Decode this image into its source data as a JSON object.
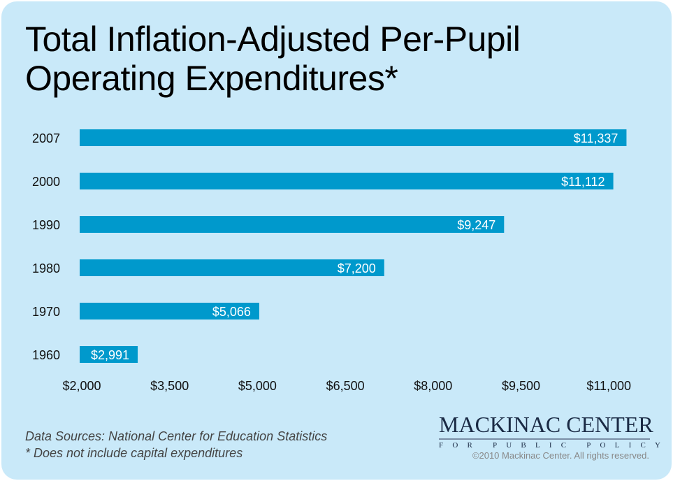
{
  "title_lines": [
    "Total Inflation-Adjusted Per-Pupil",
    "Operating Expenditures*"
  ],
  "chart_data": {
    "type": "bar",
    "orientation": "horizontal",
    "title": "Total Inflation-Adjusted Per-Pupil Operating Expenditures*",
    "categories": [
      "2007",
      "2000",
      "1990",
      "1980",
      "1970",
      "1960"
    ],
    "values": [
      11337,
      11112,
      9247,
      7200,
      5066,
      2991
    ],
    "data_labels": [
      "$11,337",
      "$11,112",
      "$9,247",
      "$7,200",
      "$5,066",
      "$2,991"
    ],
    "xlim": [
      2000,
      11000
    ],
    "x_ticks": [
      2000,
      3500,
      5000,
      6500,
      8000,
      9500,
      11000
    ],
    "x_tick_labels": [
      "$2,000",
      "$3,500",
      "$5,000",
      "$6,500",
      "$8,000",
      "$9,500",
      "$11,000"
    ],
    "grid": false,
    "bar_color": "#0099cc"
  },
  "footer": {
    "source": "Data Sources: National Center for Education Statistics",
    "note": "* Does not include capital expenditures"
  },
  "logo": {
    "left": "MACKINAC",
    "right": "CENTER",
    "sub": "FOR PUBLIC POLICY",
    "color": "#0e6a86"
  },
  "copyright": "©2010 Mackinac Center. All rights reserved."
}
